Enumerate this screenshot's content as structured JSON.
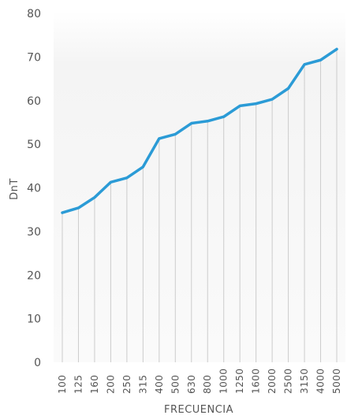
{
  "chart_data": {
    "type": "line",
    "title": "",
    "xlabel": "FRECUENCIA",
    "ylabel": "DnT",
    "categories": [
      "100",
      "125",
      "160",
      "200",
      "250",
      "315",
      "400",
      "500",
      "630",
      "800",
      "1000",
      "1250",
      "1600",
      "2000",
      "2500",
      "3150",
      "4000",
      "5000"
    ],
    "series": [
      {
        "values": [
          34.3,
          35.4,
          37.8,
          41.3,
          42.3,
          44.8,
          51.3,
          52.3,
          54.8,
          55.3,
          56.3,
          58.8,
          59.3,
          60.3,
          62.8,
          68.3,
          69.3,
          71.8
        ]
      }
    ],
    "ylim": [
      0,
      80
    ],
    "yticks": [
      0,
      10,
      20,
      30,
      40,
      50,
      60,
      70,
      80
    ],
    "grid": "vertical",
    "legend": "none",
    "colors": {
      "line": "#2b9bd6",
      "grid": "#cccccc",
      "fill_top": "#f0f0f0",
      "fill_bottom": "#ffffff",
      "text": "#555555"
    }
  }
}
